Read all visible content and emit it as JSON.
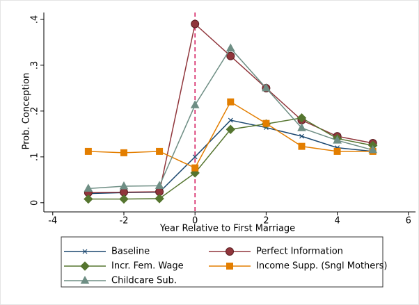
{
  "chart_data": {
    "type": "line",
    "y_label": "Prob. Conception",
    "x_label": "Year Relative to First Marriage",
    "x": [
      -3,
      -2,
      -1,
      0,
      1,
      2,
      3,
      4,
      5
    ],
    "xlim": [
      -4.25,
      6.2
    ],
    "xticks": [
      -4,
      -2,
      0,
      2,
      4,
      6
    ],
    "ylim": [
      -0.02,
      0.415
    ],
    "yticks": [
      0,
      {
        "value": 0.1,
        "label": ".1"
      },
      {
        "value": 0.2,
        "label": ".2"
      },
      {
        "value": 0.3,
        "label": ".3"
      },
      {
        "value": 0.4,
        "label": ".4"
      }
    ],
    "vline": {
      "value": 0,
      "color": "#d4145a"
    },
    "legend": "bottom",
    "series": [
      {
        "name": "Baseline",
        "color": "#1a476f",
        "marker": "x",
        "values": [
          0.02,
          0.022,
          0.023,
          0.1,
          0.18,
          0.164,
          0.145,
          0.12,
          0.112
        ]
      },
      {
        "name": "Perfect Information",
        "color": "#90353b",
        "marker": "circle",
        "values": [
          0.022,
          0.023,
          0.024,
          0.39,
          0.32,
          0.25,
          0.18,
          0.145,
          0.13
        ]
      },
      {
        "name": "Incr. Fem. Wage",
        "color": "#55752f",
        "marker": "diamond",
        "values": [
          0.008,
          0.008,
          0.009,
          0.065,
          0.16,
          0.172,
          0.185,
          0.14,
          0.125
        ]
      },
      {
        "name": "Income Supp. (Sngl Mothers)",
        "color": "#e37e00",
        "marker": "square",
        "values": [
          0.112,
          0.109,
          0.112,
          0.076,
          0.22,
          0.173,
          0.123,
          0.112,
          0.112
        ]
      },
      {
        "name": "Childcare Sub.",
        "color": "#6e8e84",
        "marker": "triangle",
        "values": [
          0.031,
          0.036,
          0.037,
          0.213,
          0.337,
          0.25,
          0.163,
          0.136,
          0.115
        ]
      }
    ]
  }
}
